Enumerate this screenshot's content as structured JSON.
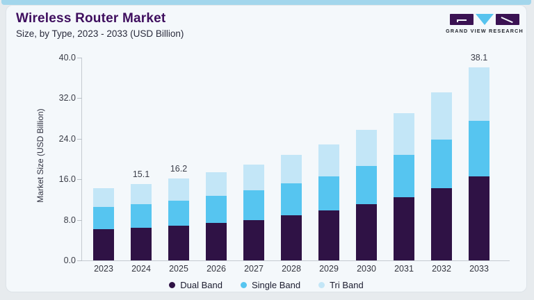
{
  "header": {
    "title": "Wireless Router Market",
    "subtitle": "Size, by Type, 2023 - 2033 (USD Billion)",
    "logo_text": "GRAND VIEW RESEARCH"
  },
  "colors": {
    "accent_strip": "#a2d6ec",
    "card_background": "#f4f8fb",
    "title": "#3e0e5e",
    "logo_purple": "#3a1253",
    "logo_blue": "#57c3ee",
    "axis_line": "#c5cbd1"
  },
  "chart_data": {
    "type": "bar",
    "stacked": true,
    "title": "Wireless Router Market Size, by Type, 2023 - 2033 (USD Billion)",
    "categories": [
      "2023",
      "2024",
      "2025",
      "2026",
      "2027",
      "2028",
      "2029",
      "2030",
      "2031",
      "2032",
      "2033"
    ],
    "series": [
      {
        "name": "Dual Band",
        "color": "#2f1245",
        "values": [
          6.2,
          6.4,
          6.8,
          7.4,
          8.0,
          8.9,
          9.8,
          11.1,
          12.5,
          14.3,
          16.6
        ]
      },
      {
        "name": "Single Band",
        "color": "#56c5f0",
        "values": [
          4.4,
          4.7,
          5.0,
          5.3,
          5.8,
          6.3,
          6.8,
          7.5,
          8.3,
          9.5,
          10.9
        ]
      },
      {
        "name": "Tri Band",
        "color": "#c3e6f7",
        "values": [
          3.6,
          4.0,
          4.4,
          4.7,
          5.1,
          5.6,
          6.3,
          7.1,
          8.2,
          9.4,
          10.6
        ]
      }
    ],
    "totals": [
      14.2,
      15.1,
      16.2,
      17.4,
      18.9,
      20.8,
      22.9,
      25.7,
      29.0,
      33.2,
      38.1
    ],
    "total_labels": {
      "2024": "15.1",
      "2025": "16.2",
      "2033": "38.1"
    },
    "xlabel": "",
    "ylabel": "Market Size (USD Billion)",
    "ylim": [
      0,
      40
    ],
    "yticks": [
      "0.0",
      "8.0",
      "16.0",
      "24.0",
      "32.0",
      "40.0"
    ],
    "grid": false,
    "legend_position": "bottom"
  }
}
